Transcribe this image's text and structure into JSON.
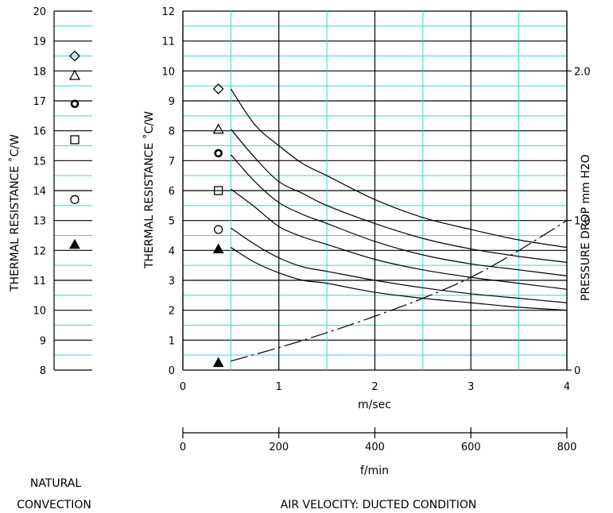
{
  "colors": {
    "grid_minor": "#33d6d6",
    "grid_major": "#000000",
    "ink": "#000000"
  },
  "left_panel": {
    "ylabel": "THERMAL  RESISTANCE   ˚C/W",
    "yticks": [
      "8",
      "9",
      "10",
      "11",
      "12",
      "13",
      "14",
      "15",
      "16",
      "17",
      "18",
      "19",
      "20"
    ],
    "caption_line1": "NATURAL",
    "caption_line2": "CONVECTION"
  },
  "main_panel": {
    "ylabel": "THERMAL  RESISTANCE   ˚C/W",
    "right_ylabel": "PRESSURE  DROP    mm H2O",
    "yticks": [
      "0",
      "1",
      "2",
      "3",
      "4",
      "5",
      "6",
      "7",
      "8",
      "9",
      "10",
      "11",
      "12"
    ],
    "right_ticks": [
      "0",
      "1.0",
      "2.0"
    ],
    "xticks": [
      "0",
      "1",
      "2",
      "3",
      "4"
    ],
    "xlabel": "m/sec",
    "fpm_ticks": [
      "0",
      "200",
      "400",
      "600",
      "800"
    ],
    "fpm_label": "f/min",
    "caption": "AIR VELOCITY:  DUCTED CONDITION"
  },
  "chart_data": [
    {
      "type": "scatter",
      "title": "",
      "ylabel": "THERMAL RESISTANCE ˚C/W",
      "xlabel": "NATURAL CONVECTION",
      "ylim": [
        8,
        20
      ],
      "grid": true,
      "series": [
        {
          "marker": "diamond",
          "values": [
            18.5
          ]
        },
        {
          "marker": "triangle-open",
          "values": [
            17.85
          ]
        },
        {
          "marker": "circle-bold",
          "values": [
            16.9
          ]
        },
        {
          "marker": "square",
          "values": [
            15.7
          ]
        },
        {
          "marker": "circle-open",
          "values": [
            13.7
          ]
        },
        {
          "marker": "triangle-filled",
          "values": [
            12.2
          ]
        }
      ]
    },
    {
      "type": "line",
      "title": "",
      "xlabel": "m/sec",
      "ylabel": "THERMAL RESISTANCE ˚C/W",
      "y2label": "PRESSURE DROP mm H2O",
      "xlim": [
        0,
        4
      ],
      "ylim": [
        0,
        12
      ],
      "y2lim": [
        0,
        2.4
      ],
      "grid": true,
      "series": [
        {
          "marker": "diamond",
          "x": [
            0.5,
            0.75,
            1.0,
            1.25,
            1.5,
            2.0,
            2.5,
            3.0,
            3.5,
            4.0
          ],
          "values": [
            9.4,
            8.2,
            7.5,
            6.9,
            6.5,
            5.7,
            5.1,
            4.7,
            4.35,
            4.1
          ]
        },
        {
          "marker": "triangle-open",
          "x": [
            0.5,
            0.75,
            1.0,
            1.25,
            1.5,
            2.0,
            2.5,
            3.0,
            3.5,
            4.0
          ],
          "values": [
            8.05,
            7.1,
            6.3,
            5.9,
            5.5,
            4.9,
            4.4,
            4.05,
            3.8,
            3.6
          ]
        },
        {
          "marker": "circle-bold",
          "x": [
            0.5,
            0.75,
            1.0,
            1.25,
            1.5,
            2.0,
            2.5,
            3.0,
            3.5,
            4.0
          ],
          "values": [
            7.2,
            6.3,
            5.6,
            5.2,
            4.9,
            4.3,
            3.85,
            3.55,
            3.35,
            3.15
          ]
        },
        {
          "marker": "square",
          "x": [
            0.5,
            0.75,
            1.0,
            1.25,
            1.5,
            2.0,
            2.5,
            3.0,
            3.5,
            4.0
          ],
          "values": [
            6.05,
            5.45,
            4.8,
            4.45,
            4.2,
            3.7,
            3.35,
            3.1,
            2.9,
            2.7
          ]
        },
        {
          "marker": "circle-open",
          "x": [
            0.5,
            0.75,
            1.0,
            1.25,
            1.5,
            2.0,
            2.5,
            3.0,
            3.5,
            4.0
          ],
          "values": [
            4.75,
            4.2,
            3.75,
            3.45,
            3.3,
            3.0,
            2.75,
            2.55,
            2.4,
            2.25
          ]
        },
        {
          "marker": "triangle-filled",
          "x": [
            0.5,
            0.75,
            1.0,
            1.25,
            1.5,
            2.0,
            2.5,
            3.0,
            3.5,
            4.0
          ],
          "values": [
            4.1,
            3.6,
            3.25,
            3.0,
            2.9,
            2.6,
            2.4,
            2.25,
            2.1,
            2.0
          ]
        },
        {
          "axis": "right",
          "style": "dashed",
          "x": [
            0.5,
            1.0,
            1.5,
            2.0,
            2.5,
            3.0,
            3.5,
            4.0
          ],
          "values": [
            0.06,
            0.15,
            0.25,
            0.36,
            0.48,
            0.62,
            0.8,
            1.0
          ]
        }
      ],
      "markers_at_x0_35": {
        "diamond": 9.4,
        "triangle-open": 8.05,
        "circle-bold": 7.25,
        "square": 6.0,
        "circle-open": 4.7,
        "triangle-filled": 4.05,
        "triangle-filled-pressure": 0.25
      },
      "secondary_x_axis": {
        "label": "f/min",
        "xlim": [
          0,
          800
        ],
        "ticks": [
          0,
          200,
          400,
          600,
          800
        ]
      }
    }
  ]
}
